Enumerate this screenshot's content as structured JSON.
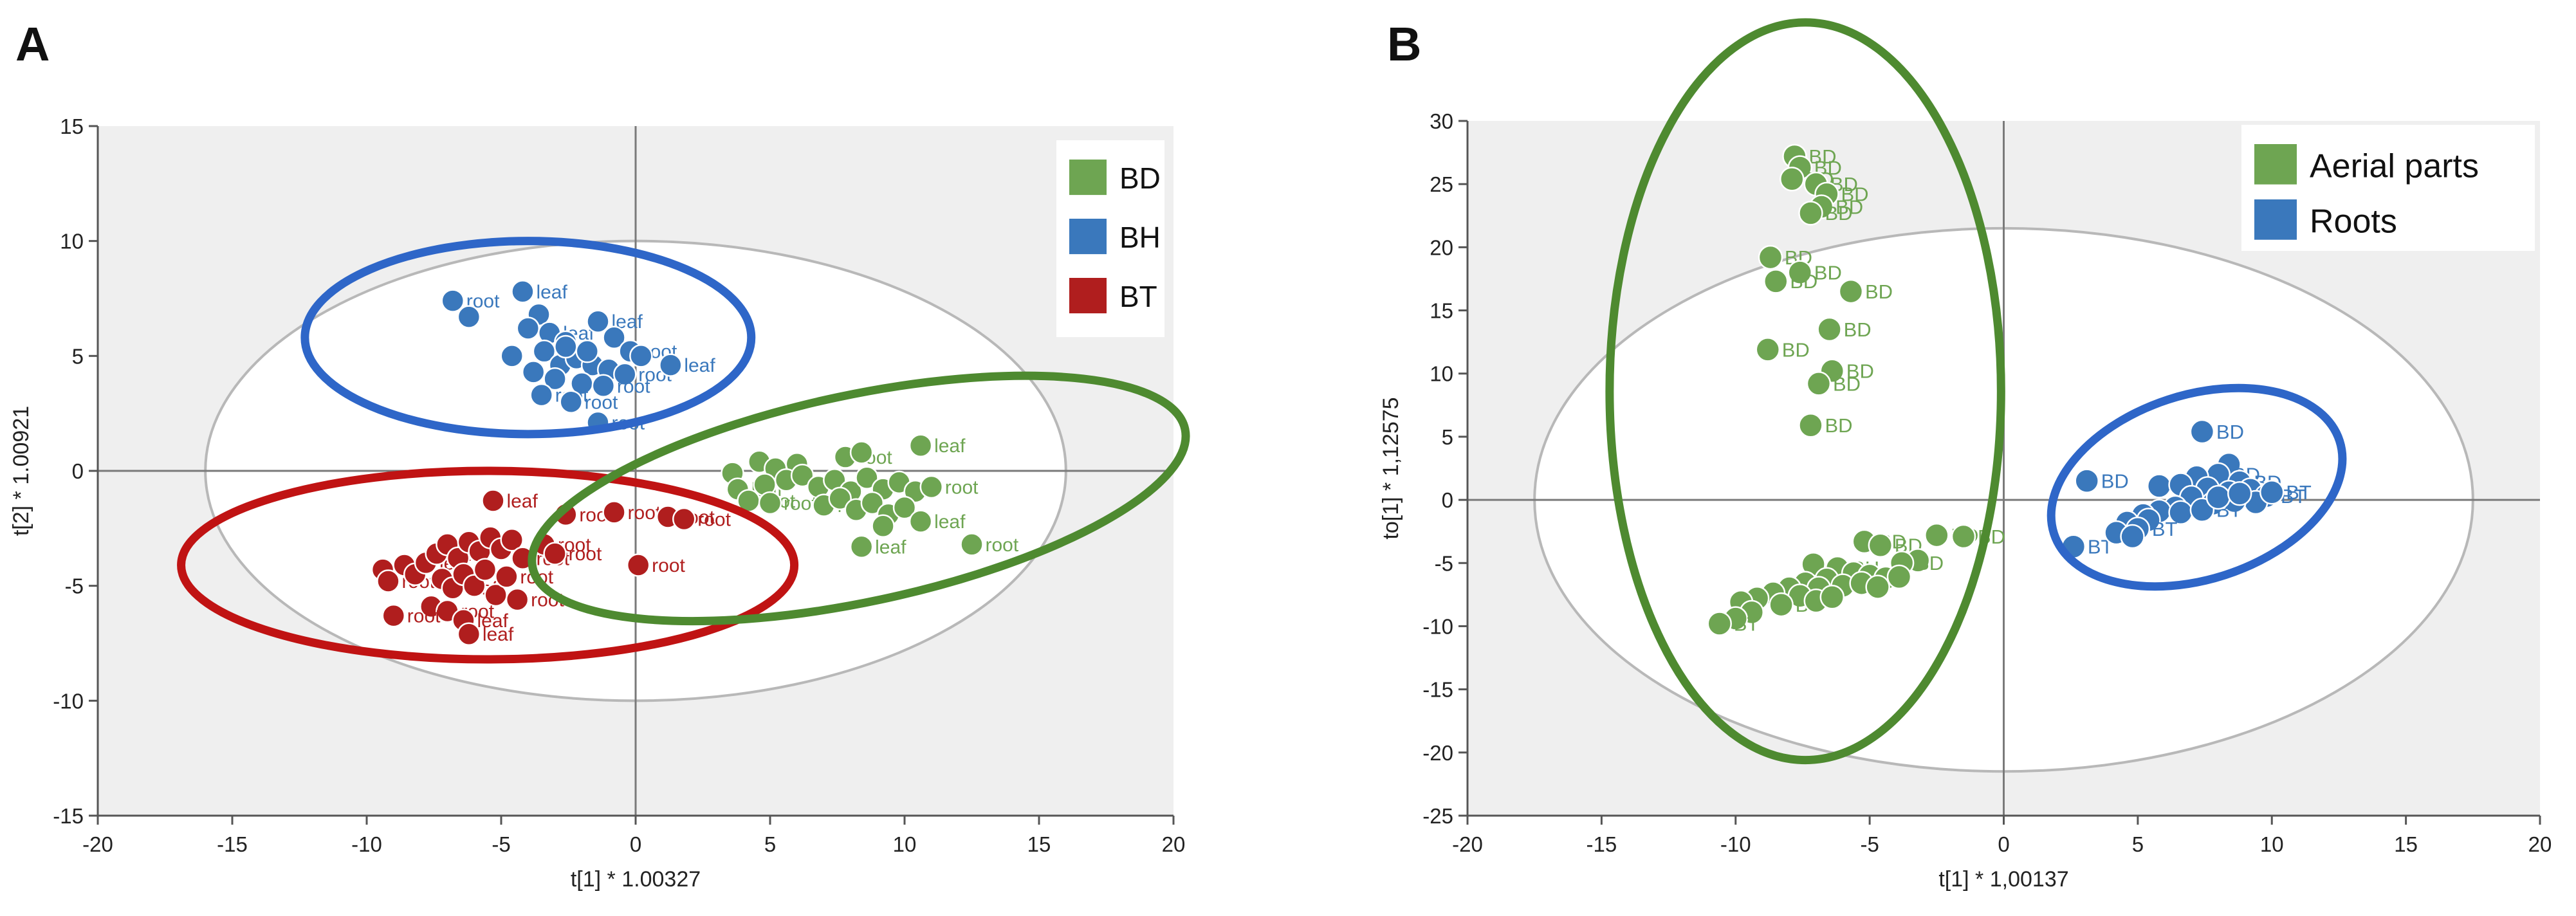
{
  "panels": {
    "a_label": "A",
    "b_label": "B"
  },
  "colors": {
    "BD": "#6ea552",
    "BH": "#3a78bc",
    "BT": "#b01e1e",
    "ellipse_green": "#4e8a30",
    "ellipse_blue": "#2e66c8",
    "ellipse_red": "#c01313",
    "plot_bg": "#efefef",
    "hotelling": "#b8b8b8",
    "axis": "#7a7a7a"
  },
  "chart_data": [
    {
      "id": "A",
      "type": "scatter",
      "title": "",
      "xlabel": "t[1] * 1.00327",
      "ylabel": "t[2] * 1.00921",
      "xlim": [
        -20,
        20
      ],
      "ylim": [
        -15,
        15
      ],
      "xticks": [
        -20,
        -15,
        -10,
        -5,
        0,
        5,
        10,
        15,
        20
      ],
      "yticks": [
        15,
        10,
        5,
        0,
        -5,
        -10,
        -15
      ],
      "legend": {
        "position": "top-right",
        "entries": [
          {
            "name": "BD",
            "color": "#6ea552"
          },
          {
            "name": "BH",
            "color": "#3a78bc"
          },
          {
            "name": "BT",
            "color": "#b01e1e"
          }
        ]
      },
      "hotelling_ellipse": {
        "center": [
          0,
          0
        ],
        "rx": 16,
        "ry": 10
      },
      "group_ellipses": [
        {
          "color": "#2e66c8",
          "center": [
            -4,
            5.8
          ],
          "rx": 8.3,
          "ry": 4.2,
          "angle": 0
        },
        {
          "color": "#c01313",
          "center": [
            -5.5,
            -4.1
          ],
          "rx": 11.4,
          "ry": 4.1,
          "angle": 0
        },
        {
          "color": "#4e8a30",
          "center": [
            8.3,
            -1.2
          ],
          "rx": 12.4,
          "ry": 4.5,
          "angle": -12
        }
      ],
      "series": [
        {
          "name": "BH",
          "color": "#3a78bc",
          "points": [
            {
              "x": -6.8,
              "y": 7.4,
              "label": "root"
            },
            {
              "x": -6.2,
              "y": 6.7
            },
            {
              "x": -4.2,
              "y": 7.8,
              "label": "leaf"
            },
            {
              "x": -3.6,
              "y": 6.8
            },
            {
              "x": -4.0,
              "y": 6.2
            },
            {
              "x": -3.2,
              "y": 6.0,
              "label": "leaf"
            },
            {
              "x": -2.6,
              "y": 5.6
            },
            {
              "x": -1.4,
              "y": 6.5,
              "label": "leaf"
            },
            {
              "x": -0.8,
              "y": 5.8
            },
            {
              "x": -0.2,
              "y": 5.2,
              "label": "root"
            },
            {
              "x": 0.2,
              "y": 5.0
            },
            {
              "x": -4.6,
              "y": 5.0
            },
            {
              "x": -3.4,
              "y": 5.2
            },
            {
              "x": -2.8,
              "y": 4.6
            },
            {
              "x": -2.2,
              "y": 4.9
            },
            {
              "x": -1.6,
              "y": 4.6
            },
            {
              "x": -1.0,
              "y": 4.4
            },
            {
              "x": -0.4,
              "y": 4.2,
              "label": "root"
            },
            {
              "x": -3.8,
              "y": 4.3
            },
            {
              "x": -3.0,
              "y": 4.0
            },
            {
              "x": -2.0,
              "y": 3.8
            },
            {
              "x": -1.2,
              "y": 3.7,
              "label": "root"
            },
            {
              "x": -3.5,
              "y": 3.3,
              "label": "root"
            },
            {
              "x": -2.4,
              "y": 3.0,
              "label": "root"
            },
            {
              "x": -1.4,
              "y": 2.1,
              "label": "root"
            },
            {
              "x": 1.3,
              "y": 4.6,
              "label": "leaf"
            },
            {
              "x": -2.6,
              "y": 5.4
            },
            {
              "x": -1.8,
              "y": 5.2
            }
          ]
        },
        {
          "name": "BT",
          "color": "#b01e1e",
          "points": [
            {
              "x": -5.3,
              "y": -1.3,
              "label": "leaf"
            },
            {
              "x": -2.6,
              "y": -1.9,
              "label": "root"
            },
            {
              "x": -0.8,
              "y": -1.8,
              "label": "root"
            },
            {
              "x": 1.2,
              "y": -2.0,
              "label": "root"
            },
            {
              "x": 1.8,
              "y": -2.1,
              "label": "root"
            },
            {
              "x": 0.1,
              "y": -4.1,
              "label": "root"
            },
            {
              "x": -9.4,
              "y": -4.3
            },
            {
              "x": -9.2,
              "y": -4.8,
              "label": "root"
            },
            {
              "x": -8.6,
              "y": -4.1
            },
            {
              "x": -8.2,
              "y": -4.5
            },
            {
              "x": -7.8,
              "y": -4.0,
              "label": "leaf"
            },
            {
              "x": -7.4,
              "y": -3.6
            },
            {
              "x": -7.0,
              "y": -3.2
            },
            {
              "x": -6.6,
              "y": -3.8
            },
            {
              "x": -6.2,
              "y": -3.1
            },
            {
              "x": -5.8,
              "y": -3.5
            },
            {
              "x": -5.4,
              "y": -2.9
            },
            {
              "x": -5.0,
              "y": -3.4
            },
            {
              "x": -4.6,
              "y": -3.0
            },
            {
              "x": -4.2,
              "y": -3.8,
              "label": "root"
            },
            {
              "x": -3.4,
              "y": -3.2,
              "label": "root"
            },
            {
              "x": -3.0,
              "y": -3.6,
              "label": "root"
            },
            {
              "x": -7.2,
              "y": -4.7
            },
            {
              "x": -6.8,
              "y": -5.1,
              "label": "leaf"
            },
            {
              "x": -6.4,
              "y": -4.5
            },
            {
              "x": -6.0,
              "y": -5.0
            },
            {
              "x": -5.6,
              "y": -4.3
            },
            {
              "x": -5.2,
              "y": -5.4
            },
            {
              "x": -4.8,
              "y": -4.6,
              "label": "root"
            },
            {
              "x": -4.4,
              "y": -5.6,
              "label": "root"
            },
            {
              "x": -7.6,
              "y": -5.9
            },
            {
              "x": -7.0,
              "y": -6.1,
              "label": "root"
            },
            {
              "x": -6.4,
              "y": -6.5,
              "label": "leaf"
            },
            {
              "x": -9.0,
              "y": -6.3,
              "label": "root"
            },
            {
              "x": -6.2,
              "y": -7.1,
              "label": "leaf"
            }
          ]
        },
        {
          "name": "BD",
          "color": "#6ea552",
          "points": [
            {
              "x": 3.6,
              "y": -0.1
            },
            {
              "x": 4.6,
              "y": 0.4
            },
            {
              "x": 5.2,
              "y": 0.1
            },
            {
              "x": 6.0,
              "y": 0.3
            },
            {
              "x": 7.8,
              "y": 0.6,
              "label": "root"
            },
            {
              "x": 8.4,
              "y": 0.8
            },
            {
              "x": 10.6,
              "y": 1.1,
              "label": "leaf"
            },
            {
              "x": 3.8,
              "y": -0.8,
              "label": "leaf"
            },
            {
              "x": 4.8,
              "y": -0.6
            },
            {
              "x": 5.6,
              "y": -0.4
            },
            {
              "x": 6.2,
              "y": -0.2
            },
            {
              "x": 6.8,
              "y": -0.7
            },
            {
              "x": 7.4,
              "y": -0.4
            },
            {
              "x": 8.0,
              "y": -0.9
            },
            {
              "x": 8.6,
              "y": -0.3
            },
            {
              "x": 9.2,
              "y": -0.8
            },
            {
              "x": 9.8,
              "y": -0.5
            },
            {
              "x": 10.4,
              "y": -0.9
            },
            {
              "x": 11.0,
              "y": -0.7,
              "label": "root"
            },
            {
              "x": 4.2,
              "y": -1.3,
              "label": "root"
            },
            {
              "x": 5.0,
              "y": -1.4,
              "label": "root"
            },
            {
              "x": 7.0,
              "y": -1.5,
              "label": "root"
            },
            {
              "x": 7.6,
              "y": -1.2
            },
            {
              "x": 8.2,
              "y": -1.7
            },
            {
              "x": 8.8,
              "y": -1.4
            },
            {
              "x": 9.4,
              "y": -1.9
            },
            {
              "x": 10.0,
              "y": -1.6
            },
            {
              "x": 10.6,
              "y": -2.2,
              "label": "leaf"
            },
            {
              "x": 9.2,
              "y": -2.4
            },
            {
              "x": 8.4,
              "y": -3.3,
              "label": "leaf"
            },
            {
              "x": 12.5,
              "y": -3.2,
              "label": "root"
            }
          ]
        }
      ]
    },
    {
      "id": "B",
      "type": "scatter",
      "title": "",
      "xlabel": "t[1] * 1,00137",
      "ylabel": "to[1] * 1,12575",
      "xlim": [
        -20,
        20
      ],
      "ylim": [
        -25,
        30
      ],
      "xticks": [
        -20,
        -15,
        -10,
        -5,
        0,
        5,
        10,
        15,
        20
      ],
      "yticks": [
        30,
        25,
        20,
        15,
        10,
        5,
        0,
        -5,
        -10,
        -15,
        -20,
        -25
      ],
      "legend": {
        "position": "top-right",
        "entries": [
          {
            "name": "Aerial parts",
            "color": "#6ea552"
          },
          {
            "name": "Roots",
            "color": "#3a78bc"
          }
        ]
      },
      "hotelling_ellipse": {
        "center": [
          0,
          0
        ],
        "rx": 17.5,
        "ry": 21.5
      },
      "group_ellipses": [
        {
          "color": "#4e8a30",
          "center": [
            -7.4,
            8.6
          ],
          "rx": 7.3,
          "ry": 29.2,
          "angle": 0
        },
        {
          "color": "#2e66c8",
          "center": [
            7.2,
            1.0
          ],
          "rx": 5.6,
          "ry": 7.3,
          "angle": -18
        }
      ],
      "series": [
        {
          "name": "Aerial parts",
          "color": "#6ea552",
          "points": [
            {
              "x": -7.8,
              "y": 27.2,
              "label": "BD"
            },
            {
              "x": -7.6,
              "y": 26.3,
              "label": "BD"
            },
            {
              "x": -7.9,
              "y": 25.4,
              "label": "BD"
            },
            {
              "x": -7.0,
              "y": 25.0,
              "label": "BD"
            },
            {
              "x": -6.6,
              "y": 24.2,
              "label": "BD"
            },
            {
              "x": -6.8,
              "y": 23.2,
              "label": "BD"
            },
            {
              "x": -7.2,
              "y": 22.7,
              "label": "BD"
            },
            {
              "x": -8.7,
              "y": 19.2,
              "label": "BD"
            },
            {
              "x": -7.6,
              "y": 18.0,
              "label": "BD"
            },
            {
              "x": -8.5,
              "y": 17.3,
              "label": "BD"
            },
            {
              "x": -5.7,
              "y": 16.5,
              "label": "BD"
            },
            {
              "x": -6.5,
              "y": 13.5,
              "label": "BD"
            },
            {
              "x": -8.8,
              "y": 11.9,
              "label": "BD"
            },
            {
              "x": -6.4,
              "y": 10.2,
              "label": "BD"
            },
            {
              "x": -6.9,
              "y": 9.2,
              "label": "BD"
            },
            {
              "x": -7.2,
              "y": 5.9,
              "label": "BD"
            },
            {
              "x": -5.2,
              "y": -3.3,
              "label": "BD"
            },
            {
              "x": -4.6,
              "y": -3.6,
              "label": "BD"
            },
            {
              "x": -2.5,
              "y": -2.8,
              "label": "BD"
            },
            {
              "x": -1.5,
              "y": -2.9,
              "label": "BD"
            },
            {
              "x": -3.2,
              "y": -4.8
            },
            {
              "x": -3.8,
              "y": -5.0,
              "label": "BD"
            },
            {
              "x": -7.1,
              "y": -5.1
            },
            {
              "x": -6.2,
              "y": -5.4,
              "label": "BH"
            },
            {
              "x": -5.6,
              "y": -5.8
            },
            {
              "x": -5.0,
              "y": -6.0
            },
            {
              "x": -4.4,
              "y": -6.2
            },
            {
              "x": -3.9,
              "y": -6.1
            },
            {
              "x": -6.6,
              "y": -6.3
            },
            {
              "x": -7.4,
              "y": -6.6
            },
            {
              "x": -8.0,
              "y": -7.0
            },
            {
              "x": -8.6,
              "y": -7.4
            },
            {
              "x": -9.2,
              "y": -7.8
            },
            {
              "x": -9.8,
              "y": -8.1
            },
            {
              "x": -6.9,
              "y": -7.0
            },
            {
              "x": -6.0,
              "y": -6.8,
              "label": "BT"
            },
            {
              "x": -5.3,
              "y": -6.6
            },
            {
              "x": -4.7,
              "y": -6.9
            },
            {
              "x": -7.6,
              "y": -7.6
            },
            {
              "x": -8.3,
              "y": -8.3,
              "label": "BT"
            },
            {
              "x": -9.4,
              "y": -8.9
            },
            {
              "x": -10.0,
              "y": -9.4
            },
            {
              "x": -10.6,
              "y": -9.8,
              "label": "BT"
            },
            {
              "x": -7.0,
              "y": -8.0
            },
            {
              "x": -6.4,
              "y": -7.7
            }
          ]
        },
        {
          "name": "Roots",
          "color": "#3a78bc",
          "points": [
            {
              "x": 7.4,
              "y": 5.4,
              "label": "BD"
            },
            {
              "x": 3.1,
              "y": 1.5,
              "label": "BD"
            },
            {
              "x": 2.6,
              "y": -3.7,
              "label": "BT"
            },
            {
              "x": 5.8,
              "y": 1.1,
              "label": "BD"
            },
            {
              "x": 8.4,
              "y": 2.8
            },
            {
              "x": 8.0,
              "y": 2.0,
              "label": "BD"
            },
            {
              "x": 8.8,
              "y": 1.4,
              "label": "BD"
            },
            {
              "x": 7.2,
              "y": 1.8
            },
            {
              "x": 6.6,
              "y": 1.2
            },
            {
              "x": 7.6,
              "y": 0.9
            },
            {
              "x": 8.4,
              "y": 0.6
            },
            {
              "x": 9.2,
              "y": 0.8
            },
            {
              "x": 9.8,
              "y": 0.3,
              "label": "BT"
            },
            {
              "x": 9.4,
              "y": -0.2
            },
            {
              "x": 8.6,
              "y": -0.1
            },
            {
              "x": 7.8,
              "y": -0.3
            },
            {
              "x": 7.0,
              "y": 0.2
            },
            {
              "x": 6.4,
              "y": -0.6
            },
            {
              "x": 5.8,
              "y": -0.9
            },
            {
              "x": 5.2,
              "y": -1.2
            },
            {
              "x": 6.6,
              "y": -1.0
            },
            {
              "x": 7.4,
              "y": -0.8,
              "label": "BT"
            },
            {
              "x": 4.6,
              "y": -1.8
            },
            {
              "x": 5.4,
              "y": -1.6
            },
            {
              "x": 5.0,
              "y": -2.3,
              "label": "BT"
            },
            {
              "x": 4.2,
              "y": -2.6
            },
            {
              "x": 4.8,
              "y": -2.9
            },
            {
              "x": 8.0,
              "y": 0.2
            },
            {
              "x": 8.8,
              "y": 0.5
            },
            {
              "x": 10.0,
              "y": 0.6,
              "label": "BT"
            }
          ]
        }
      ]
    }
  ]
}
